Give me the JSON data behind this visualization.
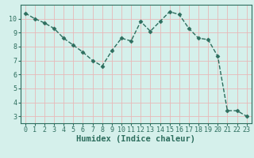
{
  "x": [
    0,
    1,
    2,
    3,
    4,
    5,
    6,
    7,
    8,
    9,
    10,
    11,
    12,
    13,
    14,
    15,
    16,
    17,
    18,
    19,
    20,
    21,
    22,
    23
  ],
  "y": [
    10.4,
    10.0,
    9.7,
    9.3,
    8.6,
    8.1,
    7.6,
    7.0,
    6.6,
    7.7,
    8.6,
    8.4,
    9.8,
    9.1,
    9.8,
    10.5,
    10.3,
    9.3,
    8.6,
    8.5,
    7.3,
    3.4,
    3.4,
    3.0
  ],
  "line_color": "#2d6e5e",
  "marker": "D",
  "marker_size": 2.5,
  "bg_color": "#d5f0eb",
  "grid_color": "#e8b8b8",
  "xlabel": "Humidex (Indice chaleur)",
  "xlim": [
    -0.5,
    23.5
  ],
  "ylim": [
    2.5,
    11.0
  ],
  "yticks": [
    3,
    4,
    5,
    6,
    7,
    8,
    9,
    10
  ],
  "xticks": [
    0,
    1,
    2,
    3,
    4,
    5,
    6,
    7,
    8,
    9,
    10,
    11,
    12,
    13,
    14,
    15,
    16,
    17,
    18,
    19,
    20,
    21,
    22,
    23
  ],
  "tick_fontsize": 6,
  "label_fontsize": 7.5
}
